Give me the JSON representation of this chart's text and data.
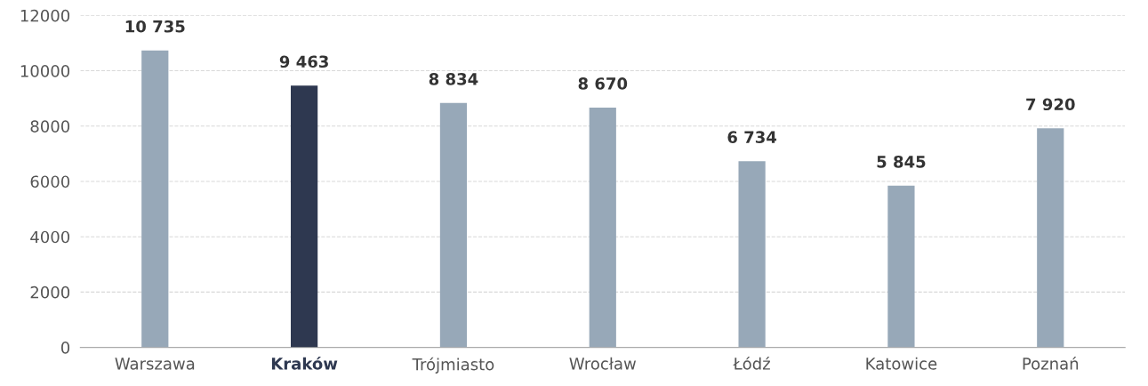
{
  "chart_data": {
    "type": "bar",
    "categories": [
      "Warszawa",
      "Kraków",
      "Trójmiasto",
      "Wrocław",
      "Łódź",
      "Katowice",
      "Poznań"
    ],
    "values": [
      10735,
      9463,
      8834,
      8670,
      6734,
      5845,
      7920
    ],
    "value_labels": [
      "10 735",
      "9 463",
      "8 834",
      "8 670",
      "6 734",
      "5 845",
      "7 920"
    ],
    "colors": [
      "#97a8b8",
      "#2e3850",
      "#97a8b8",
      "#97a8b8",
      "#97a8b8",
      "#97a8b8",
      "#97a8b8"
    ],
    "ylim": [
      0,
      12000
    ],
    "yticks": [
      0,
      2000,
      4000,
      6000,
      8000,
      10000,
      12000
    ],
    "grid": "y"
  }
}
